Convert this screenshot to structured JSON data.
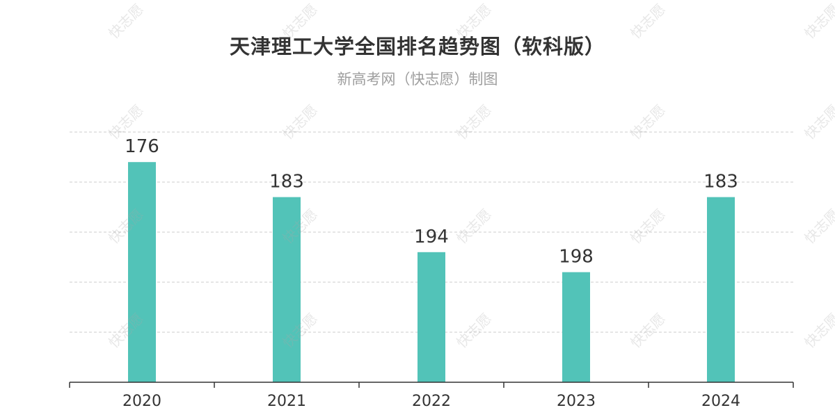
{
  "title": "天津理工大学全国排名趋势图（软科版）",
  "subtitle": "新高考网（快志愿）制图",
  "watermark": "快志愿",
  "colors": {
    "bar": "#52c3b8",
    "grid": "#cccccc",
    "axis": "#333333",
    "label": "#333333"
  },
  "chart_data": {
    "type": "bar",
    "categories": [
      "2020",
      "2021",
      "2022",
      "2023",
      "2024"
    ],
    "values": [
      176,
      183,
      194,
      198,
      183
    ],
    "title": "天津理工大学全国排名趋势图（软科版）",
    "subtitle": "新高考网（快志愿）制图",
    "xlabel": "",
    "ylabel": "",
    "y_inverted": true,
    "ylim": [
      170,
      220
    ],
    "grid": true,
    "legend": "none"
  }
}
